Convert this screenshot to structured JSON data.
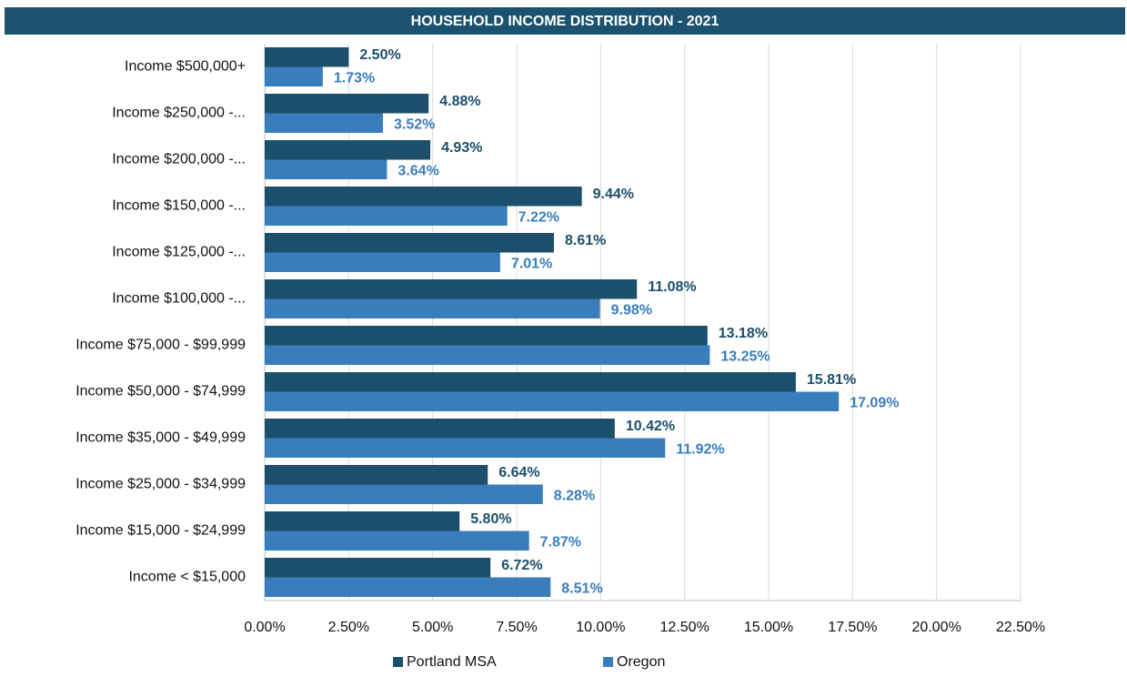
{
  "chart_data": {
    "type": "bar",
    "orientation": "horizontal",
    "title": "HOUSEHOLD INCOME DISTRIBUTION - 2021",
    "categories": [
      "Income $500,000+",
      "Income $250,000 -...",
      "Income $200,000 -...",
      "Income $150,000 -...",
      "Income $125,000 -...",
      "Income $100,000 -...",
      "Income $75,000 - $99,999",
      "Income $50,000 - $74,999",
      "Income $35,000 - $49,999",
      "Income $25,000 - $34,999",
      "Income $15,000 - $24,999",
      "Income < $15,000"
    ],
    "series": [
      {
        "name": "Portland MSA",
        "color": "#1b4f6b",
        "values": [
          2.5,
          4.88,
          4.93,
          9.44,
          8.61,
          11.08,
          13.18,
          15.81,
          10.42,
          6.64,
          5.8,
          6.72
        ],
        "value_labels": [
          "2.50%",
          "4.88%",
          "4.93%",
          "9.44%",
          "8.61%",
          "11.08%",
          "13.18%",
          "15.81%",
          "10.42%",
          "6.64%",
          "5.80%",
          "6.72%"
        ]
      },
      {
        "name": "Oregon",
        "color": "#3a7dbd",
        "values": [
          1.73,
          3.52,
          3.64,
          7.22,
          7.01,
          9.98,
          13.25,
          17.09,
          11.92,
          8.28,
          7.87,
          8.51
        ],
        "value_labels": [
          "1.73%",
          "3.52%",
          "3.64%",
          "7.22%",
          "7.01%",
          "9.98%",
          "13.25%",
          "17.09%",
          "11.92%",
          "8.28%",
          "7.87%",
          "8.51%"
        ]
      }
    ],
    "xlim": [
      0,
      22.5
    ],
    "xticks": [
      {
        "value": 0,
        "label": "0.00%"
      },
      {
        "value": 2.5,
        "label": "2.50%"
      },
      {
        "value": 5,
        "label": "5.00%"
      },
      {
        "value": 7.5,
        "label": "7.50%"
      },
      {
        "value": 10,
        "label": "10.00%"
      },
      {
        "value": 12.5,
        "label": "12.50%"
      },
      {
        "value": 15,
        "label": "15.00%"
      },
      {
        "value": 17.5,
        "label": "17.50%"
      },
      {
        "value": 20,
        "label": "20.00%"
      },
      {
        "value": 22.5,
        "label": "22.50%"
      }
    ],
    "grid": true,
    "legend": "bottom"
  }
}
